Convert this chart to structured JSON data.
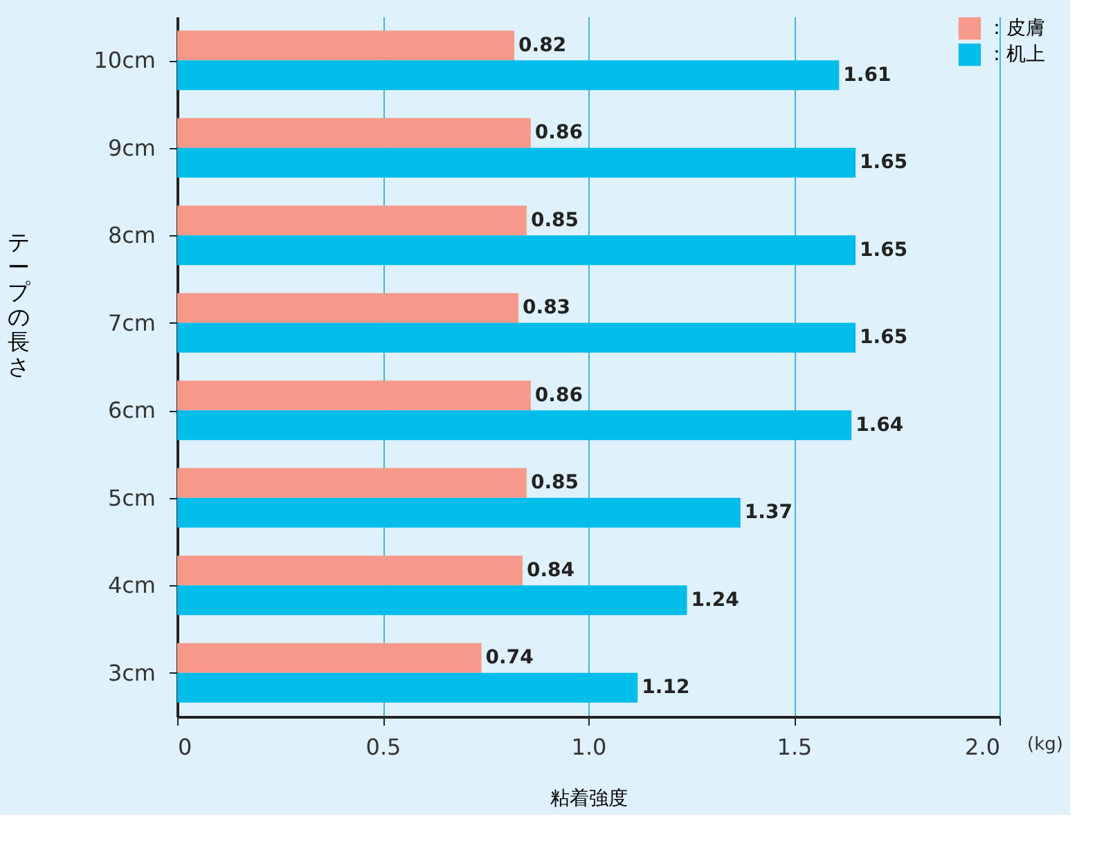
{
  "chart_data": {
    "type": "bar",
    "orientation": "horizontal",
    "categories": [
      "10cm",
      "9cm",
      "8cm",
      "7cm",
      "6cm",
      "5cm",
      "4cm",
      "3cm"
    ],
    "series": [
      {
        "name": "：皮膚",
        "color": "#f7998a",
        "values": [
          0.82,
          0.86,
          0.85,
          0.83,
          0.86,
          0.85,
          0.84,
          0.74
        ]
      },
      {
        "name": "：机上",
        "color": "#00bde9",
        "values": [
          1.61,
          1.65,
          1.65,
          1.65,
          1.64,
          1.37,
          1.24,
          1.12
        ]
      }
    ],
    "xlabel": "粘着強度",
    "ylabel": "テープの長さ",
    "xlim": [
      0,
      2
    ],
    "xticks": [
      0,
      0.5,
      {
        "value": 1,
        "label": "1.0"
      },
      1.5,
      {
        "value": 2,
        "label": "2.0"
      }
    ],
    "annotations": [
      "(kg)"
    ],
    "data_labels": true,
    "grid": "x",
    "legend": "top right"
  }
}
